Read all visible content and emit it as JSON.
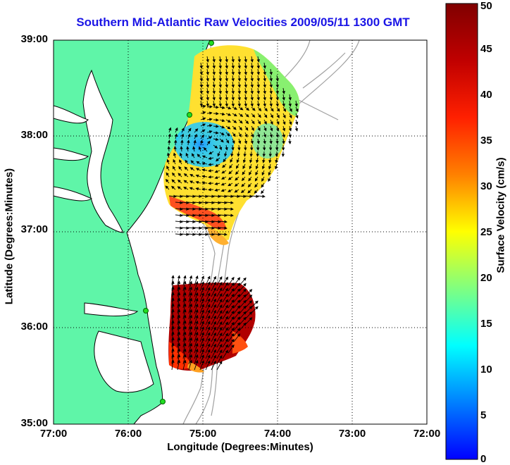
{
  "title": "Southern Mid-Atlantic Raw Velocities 2009/05/11 1300 GMT",
  "xlabel": "Longitude (Degrees:Minutes)",
  "ylabel": "Latitude (Degrees:Minutes)",
  "colorbar_label": "Surface Velocity (cm/s)",
  "x_ticks": [
    "77:00",
    "76:00",
    "75:00",
    "74:00",
    "73:00",
    "72:00"
  ],
  "y_ticks": [
    "39:00",
    "38:00",
    "37:00",
    "36:00",
    "35:00"
  ],
  "colorbar_ticks": [
    "50",
    "45",
    "40",
    "35",
    "30",
    "25",
    "20",
    "15",
    "10",
    "5",
    "0"
  ],
  "map": {
    "lon_range": [
      -77,
      -72
    ],
    "lat_range": [
      35,
      39
    ],
    "velocity_range_cm_s": [
      0,
      50
    ],
    "grid": "dotted",
    "land_color": "#5ff5a8",
    "bathymetry_color": "#a0a0a0",
    "arrow_color": "#000000",
    "stations_color": "#22dd22"
  }
}
